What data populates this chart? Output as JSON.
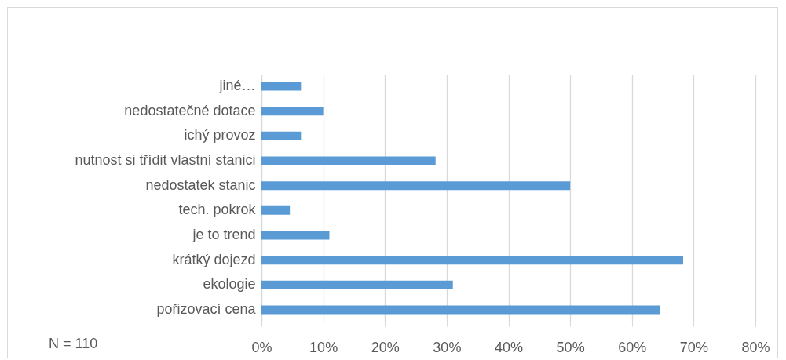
{
  "chart_data": {
    "type": "bar",
    "orientation": "horizontal",
    "categories": [
      "jiné…",
      "nedostatečné dotace",
      "ichý provoz",
      "nutnost si třídit vlastní stanici",
      "nedostatek stanic",
      "tech. pokrok",
      "je to trend",
      "krátký dojezd",
      "ekologie",
      "pořizovací cena"
    ],
    "values": [
      6.4,
      10,
      6.4,
      28.2,
      50,
      4.6,
      11,
      68.3,
      31,
      64.6
    ],
    "color": "#5b9bd5",
    "xlim": [
      0,
      80
    ],
    "xticks": [
      {
        "value": 0,
        "label": "0%"
      },
      {
        "value": 10,
        "label": "10%"
      },
      {
        "value": 20,
        "label": "20%"
      },
      {
        "value": 30,
        "label": "30%"
      },
      {
        "value": 40,
        "label": "40%"
      },
      {
        "value": 50,
        "label": "50%"
      },
      {
        "value": 60,
        "label": "60%"
      },
      {
        "value": 70,
        "label": "70%"
      },
      {
        "value": 80,
        "label": "80%"
      }
    ],
    "grid": "x",
    "annotations": [
      "N = 110"
    ]
  }
}
